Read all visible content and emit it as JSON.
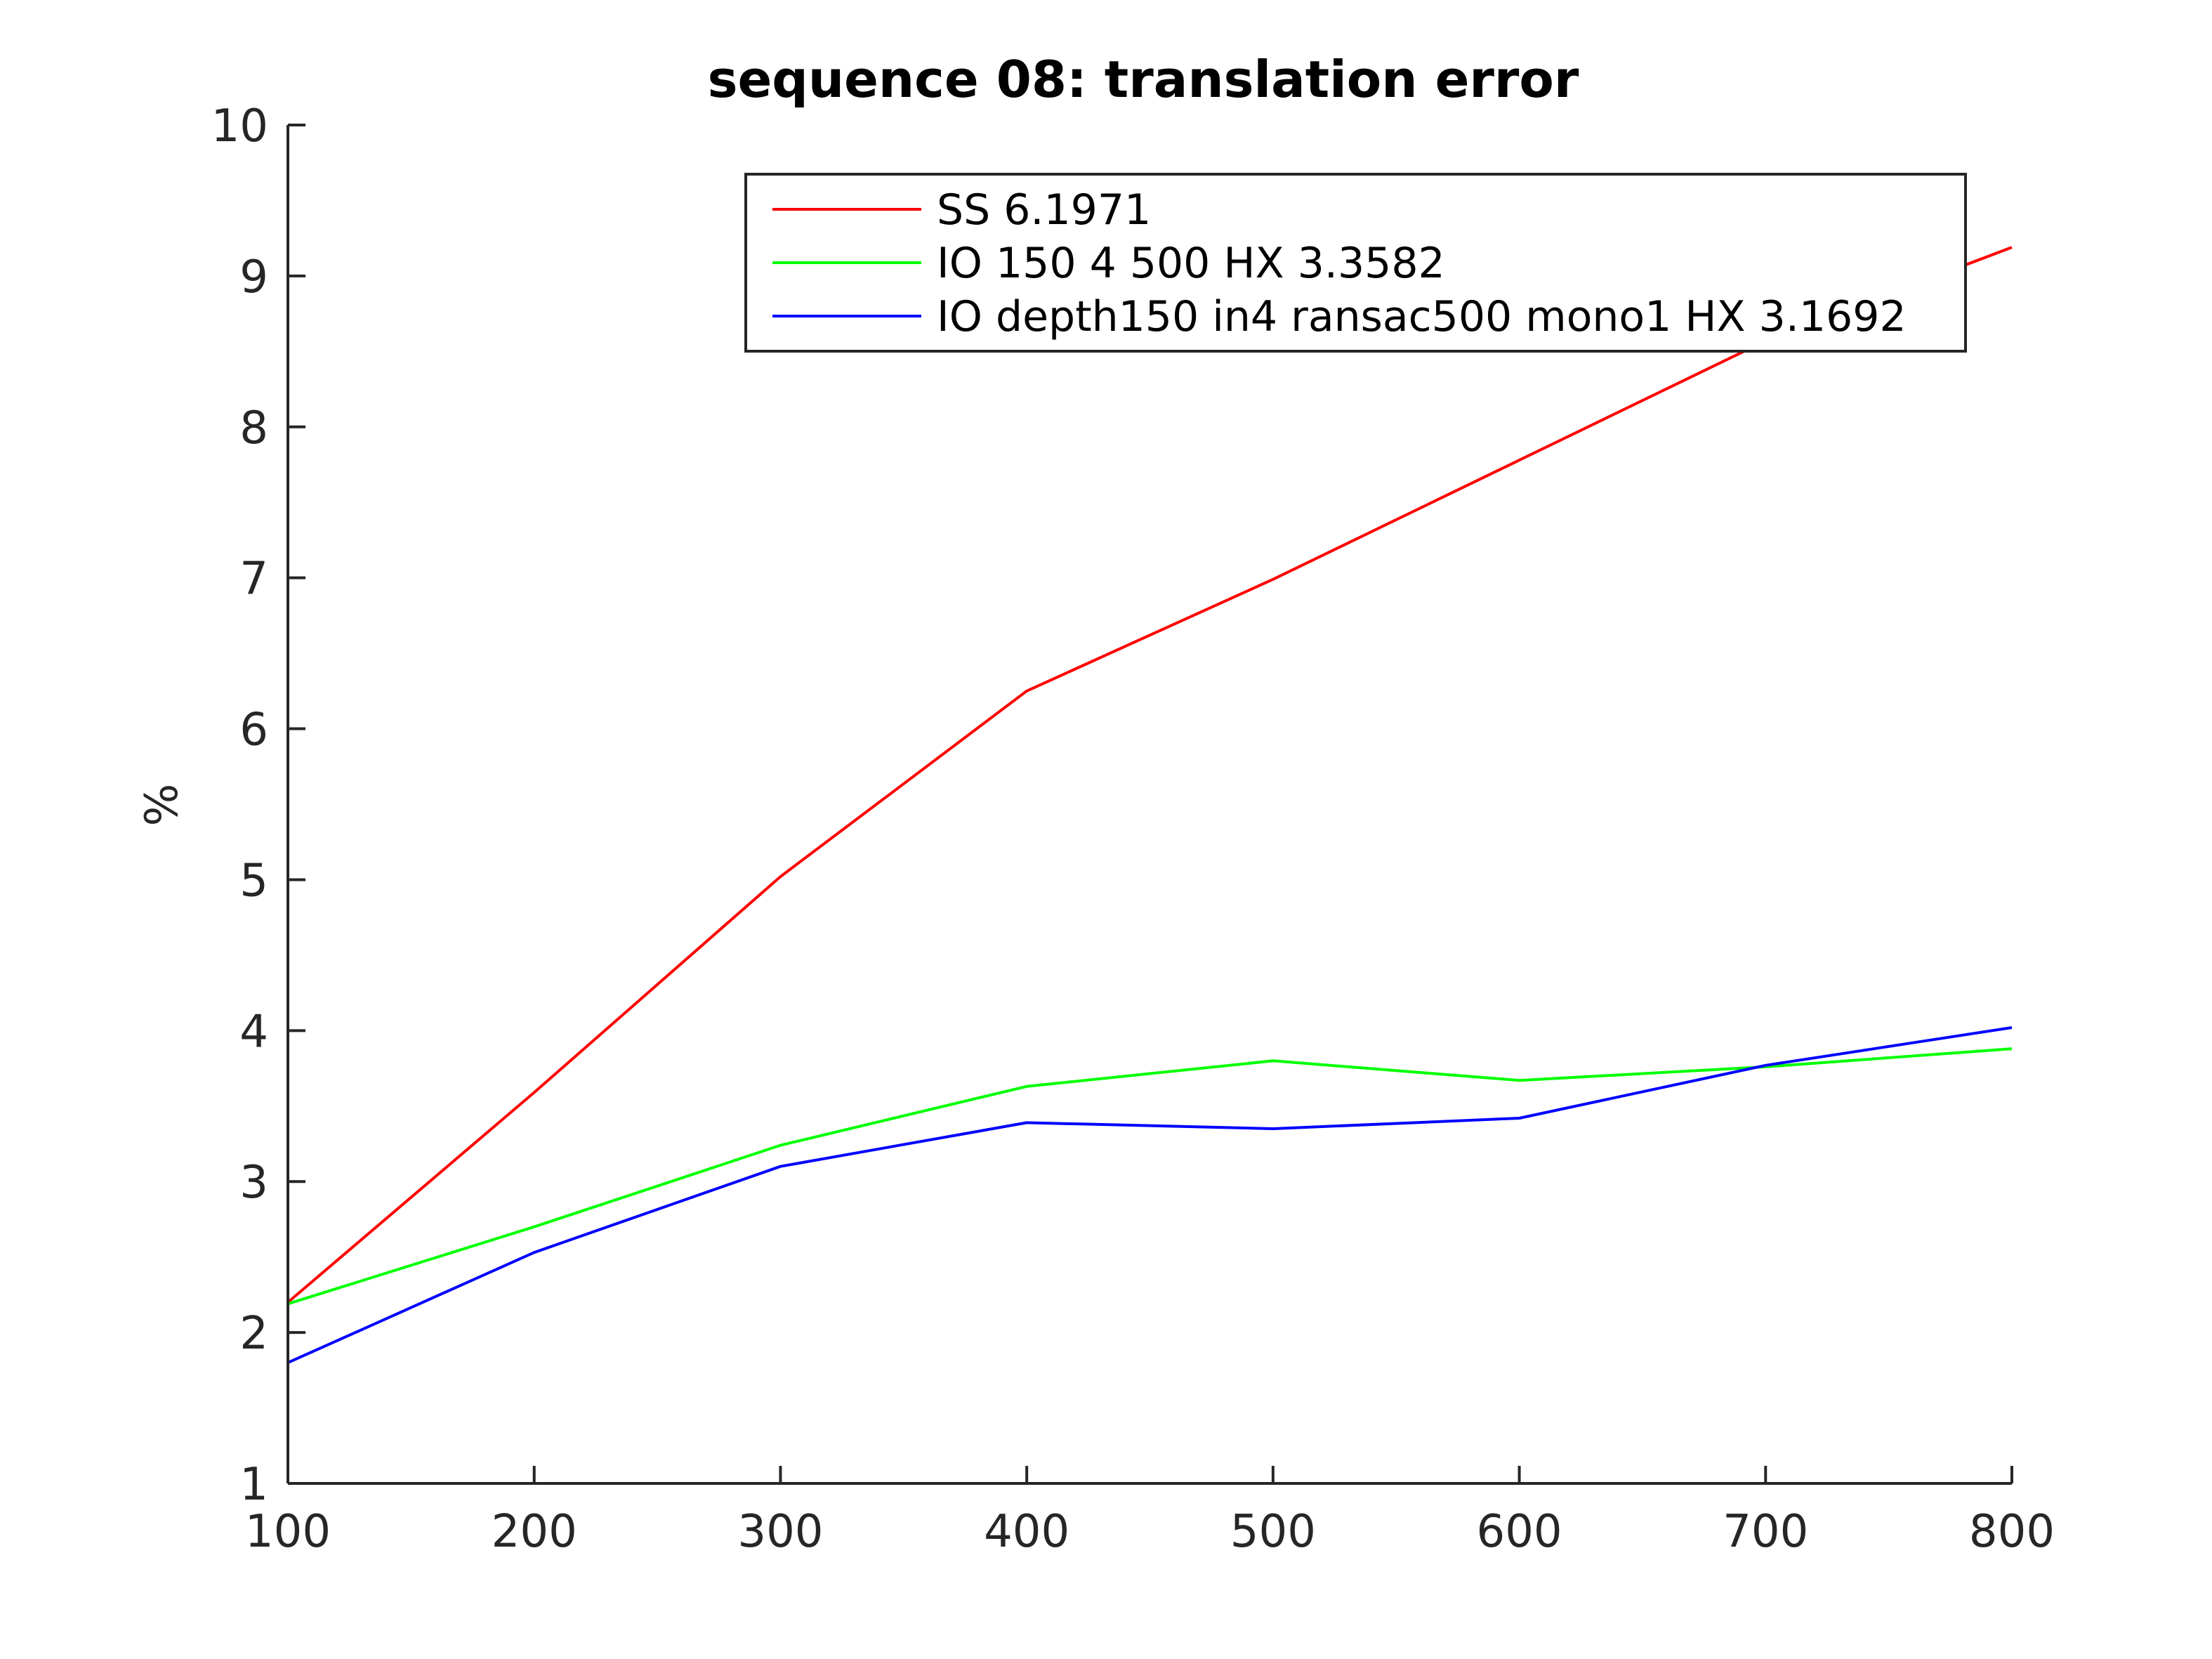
{
  "chart_data": {
    "type": "line",
    "title": "sequence 08: translation error",
    "xlabel": "",
    "ylabel": "%",
    "xlim": [
      100,
      800
    ],
    "ylim": [
      1,
      10
    ],
    "xticks": [
      100,
      200,
      300,
      400,
      500,
      600,
      700,
      800
    ],
    "yticks": [
      1,
      2,
      3,
      4,
      5,
      6,
      7,
      8,
      9,
      10
    ],
    "grid": false,
    "legend_position": "top-right",
    "x": [
      100,
      200,
      300,
      400,
      500,
      600,
      700,
      800
    ],
    "series": [
      {
        "name": "SS 6.1971",
        "color": "#ff0000",
        "values": [
          2.2,
          3.59,
          5.02,
          6.25,
          6.99,
          7.78,
          8.57,
          9.19
        ]
      },
      {
        "name": "IO 150 4 500 HX 3.3582",
        "color": "#00ff00",
        "values": [
          2.19,
          2.7,
          3.24,
          3.63,
          3.8,
          3.67,
          3.76,
          3.88
        ]
      },
      {
        "name": "IO depth150 in4 ransac500 mono1 HX 3.1692",
        "color": "#0000ff",
        "values": [
          1.8,
          2.53,
          3.1,
          3.39,
          3.35,
          3.42,
          3.77,
          4.02
        ]
      }
    ]
  }
}
